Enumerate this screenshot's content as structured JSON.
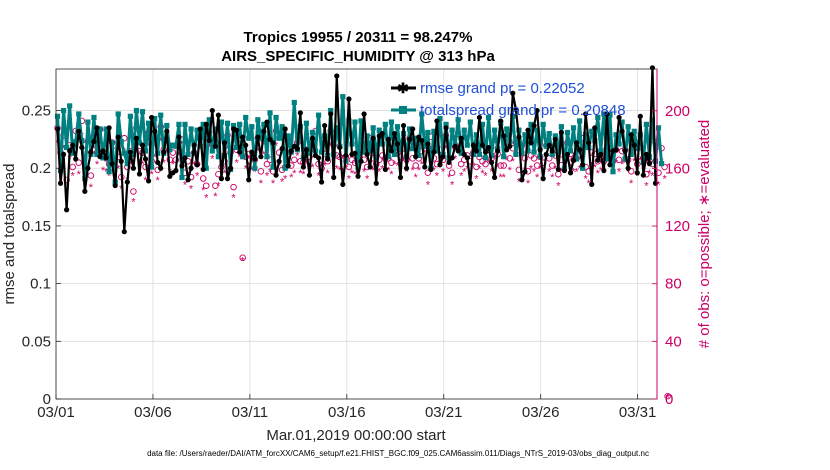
{
  "chart_data": {
    "type": "line",
    "title_line1": "Tropics 19955 / 20311 = 98.247%",
    "title_line2": "AIRS_SPECIFIC_HUMIDITY @ 313 hPa",
    "xlabel": "Mar.01,2019 00:00:00 start",
    "ylabel_left": "rmse and totalspread",
    "ylabel_right": "# of obs: o=possible; ∗=evaluated",
    "x_tick_labels": [
      "03/01",
      "03/06",
      "03/11",
      "03/16",
      "03/21",
      "03/26",
      "03/31"
    ],
    "x_tick_days": [
      0,
      5,
      10,
      15,
      20,
      25,
      30
    ],
    "xlim_days": [
      0,
      31
    ],
    "y_left_ticks": [
      "0",
      "0.05",
      "0.1",
      "0.15",
      "0.2",
      "0.25"
    ],
    "y_left_tick_values": [
      0,
      0.05,
      0.1,
      0.15,
      0.2,
      0.25
    ],
    "ylim_left": [
      0,
      0.286
    ],
    "y_right_ticks": [
      "0",
      "40",
      "80",
      "120",
      "160",
      "200"
    ],
    "y_right_tick_values": [
      0,
      40,
      80,
      120,
      160,
      200
    ],
    "ylim_right": [
      0,
      229
    ],
    "footer": "data file: /Users/raeder/DAI/ATM_forcXX/CAM6_setup/f.e21.FHIST_BGC.f09_025.CAM6assim.011/Diags_NTrS_2019-03/obs_diag_output.nc",
    "colors": {
      "rmse": "#000000",
      "spread": "#008080",
      "obs": "#cc0066",
      "legend_text": "#1f4fd8",
      "grid": "#dcdcdc"
    },
    "series": [
      {
        "name": "rmse",
        "legend": "rmse grand pr = 0.22052",
        "values": [
          0.234,
          0.187,
          0.212,
          0.164,
          0.215,
          0.22,
          0.208,
          0.232,
          0.218,
          0.18,
          0.2,
          0.214,
          0.223,
          0.235,
          0.21,
          0.215,
          0.209,
          0.235,
          0.204,
          0.185,
          0.227,
          0.206,
          0.145,
          0.188,
          0.214,
          0.2,
          0.226,
          0.195,
          0.22,
          0.208,
          0.189,
          0.244,
          0.232,
          0.205,
          0.2,
          0.214,
          0.232,
          0.193,
          0.196,
          0.198,
          0.227,
          0.202,
          0.209,
          0.19,
          0.2,
          0.22,
          0.203,
          0.234,
          0.199,
          0.238,
          0.224,
          0.25,
          0.219,
          0.246,
          0.191,
          0.222,
          0.191,
          0.2,
          0.234,
          0.233,
          0.214,
          0.227,
          0.22,
          0.19,
          0.214,
          0.208,
          0.227,
          0.21,
          0.232,
          0.24,
          0.225,
          0.222,
          0.194,
          0.206,
          0.217,
          0.234,
          0.202,
          0.215,
          0.219,
          0.217,
          0.248,
          0.201,
          0.216,
          0.194,
          0.226,
          0.211,
          0.209,
          0.188,
          0.237,
          0.208,
          0.247,
          0.192,
          0.28,
          0.218,
          0.186,
          0.211,
          0.26,
          0.212,
          0.213,
          0.193,
          0.206,
          0.247,
          0.212,
          0.201,
          0.226,
          0.187,
          0.228,
          0.23,
          0.199,
          0.225,
          0.215,
          0.23,
          0.221,
          0.192,
          0.237,
          0.2,
          0.225,
          0.234,
          0.21,
          0.227,
          0.224,
          0.201,
          0.221,
          0.199,
          0.214,
          0.241,
          0.203,
          0.21,
          0.235,
          0.205,
          0.209,
          0.219,
          0.215,
          0.226,
          0.212,
          0.209,
          0.187,
          0.22,
          0.215,
          0.244,
          0.22,
          0.214,
          0.218,
          0.205,
          0.192,
          0.215,
          0.241,
          0.228,
          0.216,
          0.219,
          0.265,
          0.251,
          0.227,
          0.19,
          0.197,
          0.233,
          0.222,
          0.237,
          0.25,
          0.216,
          0.191,
          0.212,
          0.22,
          0.215,
          0.225,
          0.199,
          0.231,
          0.198,
          0.212,
          0.196,
          0.207,
          0.222,
          0.216,
          0.203,
          0.247,
          0.222,
          0.186,
          0.235,
          0.207,
          0.212,
          0.198,
          0.247,
          0.203,
          0.215,
          0.216,
          0.244,
          0.232,
          0.215,
          0.2,
          0.229,
          0.22,
          0.196,
          0.245,
          0.194,
          0.212,
          0.204,
          0.287,
          0.187
        ]
      },
      {
        "name": "totalspread",
        "legend": "totalspread grand pr = 0.20848",
        "values": [
          0.245,
          0.198,
          0.25,
          0.218,
          0.254,
          0.213,
          0.223,
          0.247,
          0.224,
          0.191,
          0.24,
          0.212,
          0.244,
          0.212,
          0.234,
          0.209,
          0.234,
          0.197,
          0.222,
          0.188,
          0.247,
          0.223,
          0.213,
          0.204,
          0.245,
          0.212,
          0.25,
          0.222,
          0.249,
          0.215,
          0.239,
          0.201,
          0.243,
          0.213,
          0.246,
          0.213,
          0.237,
          0.216,
          0.22,
          0.219,
          0.238,
          0.192,
          0.238,
          0.212,
          0.234,
          0.213,
          0.233,
          0.219,
          0.238,
          0.2,
          0.242,
          0.215,
          0.234,
          0.21,
          0.24,
          0.211,
          0.239,
          0.199,
          0.237,
          0.218,
          0.238,
          0.21,
          0.244,
          0.226,
          0.236,
          0.2,
          0.242,
          0.226,
          0.238,
          0.21,
          0.248,
          0.201,
          0.244,
          0.226,
          0.236,
          0.2,
          0.228,
          0.214,
          0.257,
          0.216,
          0.236,
          0.209,
          0.239,
          0.213,
          0.231,
          0.215,
          0.246,
          0.214,
          0.228,
          0.211,
          0.25,
          0.212,
          0.235,
          0.219,
          0.262,
          0.206,
          0.241,
          0.221,
          0.24,
          0.201,
          0.241,
          0.214,
          0.228,
          0.215,
          0.235,
          0.209,
          0.233,
          0.221,
          0.238,
          0.21,
          0.24,
          0.212,
          0.236,
          0.216,
          0.23,
          0.21,
          0.234,
          0.217,
          0.226,
          0.211,
          0.247,
          0.219,
          0.231,
          0.2,
          0.232,
          0.215,
          0.243,
          0.212,
          0.238,
          0.209,
          0.233,
          0.22,
          0.242,
          0.213,
          0.233,
          0.22,
          0.24,
          0.212,
          0.229,
          0.212,
          0.238,
          0.209,
          0.244,
          0.211,
          0.233,
          0.217,
          0.239,
          0.21,
          0.234,
          0.223,
          0.245,
          0.212,
          0.233,
          0.213,
          0.229,
          0.215,
          0.238,
          0.214,
          0.233,
          0.21,
          0.238,
          0.219,
          0.23,
          0.212,
          0.228,
          0.214,
          0.236,
          0.2,
          0.231,
          0.215,
          0.235,
          0.208,
          0.241,
          0.2,
          0.229,
          0.218,
          0.232,
          0.224,
          0.244,
          0.215,
          0.247,
          0.208,
          0.246,
          0.197,
          0.229,
          0.221,
          0.24,
          0.208,
          0.236,
          0.212,
          0.232,
          0.217,
          0.229,
          0.205,
          0.238,
          0.21,
          0.242,
          0.206,
          0.235,
          0.204
        ]
      },
      {
        "name": "obs_possible",
        "axis": "right",
        "marker": "o",
        "values": [
          188,
          171,
          183,
          152,
          176,
          161,
          186,
          164,
          193,
          176,
          179,
          155,
          183,
          171,
          187,
          168,
          167,
          163,
          178,
          176,
          168,
          154,
          181,
          161,
          172,
          144,
          188,
          172,
          171,
          161,
          185,
          165,
          178,
          159,
          189,
          173,
          180,
          166,
          171,
          166,
          178,
          180,
          157,
          165,
          154,
          171,
          163,
          186,
          153,
          148,
          185,
          176,
          148,
          156,
          161,
          165,
          183,
          171,
          147,
          173,
          177,
          98,
          168,
          170,
          168,
          166,
          181,
          158,
          179,
          163,
          166,
          158,
          186,
          171,
          159,
          161,
          179,
          162,
          166,
          178,
          165,
          164,
          173,
          168,
          170,
          186,
          163,
          160,
          170,
          165,
          186,
          176,
          169,
          168,
          167,
          168,
          161,
          166,
          164,
          164,
          173,
          166,
          161,
          181,
          167,
          163,
          166,
          169,
          167,
          167,
          164,
          172,
          171,
          168,
          174,
          166,
          181,
          167,
          162,
          167,
          172,
          174,
          157,
          182,
          167,
          163,
          173,
          166,
          183,
          162,
          157,
          175,
          184,
          163,
          166,
          169,
          165,
          171,
          161,
          168,
          165,
          163,
          173,
          167,
          176,
          170,
          162,
          162,
          175,
          167,
          174,
          178,
          159,
          176,
          167,
          158,
          169,
          167,
          162,
          168,
          164,
          176,
          167,
          162,
          169,
          156,
          166,
          175,
          178,
          170,
          166,
          167,
          169,
          181,
          161,
          158,
          171,
          170,
          165,
          167,
          165,
          174,
          174,
          165,
          173,
          166,
          172,
          173,
          166,
          158,
          174,
          163,
          175,
          167,
          156,
          165,
          163,
          178,
          157,
          174,
          161,
          2
        ]
      },
      {
        "name": "obs_evaluated",
        "axis": "right",
        "marker": "*",
        "values": [
          178,
          161,
          174,
          144,
          167,
          155,
          176,
          156,
          183,
          168,
          170,
          147,
          174,
          163,
          178,
          159,
          158,
          155,
          169,
          166,
          160,
          146,
          172,
          152,
          163,
          137,
          178,
          164,
          163,
          152,
          176,
          156,
          168,
          152,
          179,
          164,
          171,
          158,
          163,
          157,
          169,
          171,
          149,
          156,
          146,
          163,
          155,
          176,
          145,
          140,
          176,
          167,
          141,
          148,
          153,
          157,
          174,
          162,
          140,
          164,
          168,
          96,
          160,
          162,
          159,
          158,
          172,
          150,
          170,
          155,
          158,
          150,
          176,
          162,
          151,
          153,
          170,
          154,
          157,
          169,
          157,
          156,
          164,
          160,
          161,
          176,
          155,
          152,
          162,
          157,
          176,
          167,
          160,
          159,
          158,
          160,
          153,
          157,
          156,
          156,
          164,
          158,
          153,
          172,
          159,
          155,
          158,
          160,
          158,
          159,
          156,
          163,
          162,
          160,
          165,
          158,
          172,
          159,
          154,
          159,
          163,
          165,
          149,
          173,
          159,
          155,
          164,
          158,
          174,
          154,
          149,
          167,
          175,
          155,
          158,
          160,
          156,
          162,
          153,
          160,
          157,
          155,
          164,
          158,
          167,
          161,
          154,
          154,
          166,
          159,
          165,
          169,
          151,
          168,
          159,
          150,
          160,
          158,
          154,
          160,
          156,
          167,
          158,
          154,
          160,
          148,
          158,
          166,
          169,
          161,
          158,
          158,
          160,
          172,
          153,
          150,
          162,
          161,
          157,
          159,
          157,
          165,
          165,
          157,
          164,
          158,
          163,
          164,
          158,
          150,
          165,
          155,
          166,
          159,
          148,
          157,
          155,
          169,
          149,
          165,
          153,
          1
        ]
      }
    ]
  }
}
